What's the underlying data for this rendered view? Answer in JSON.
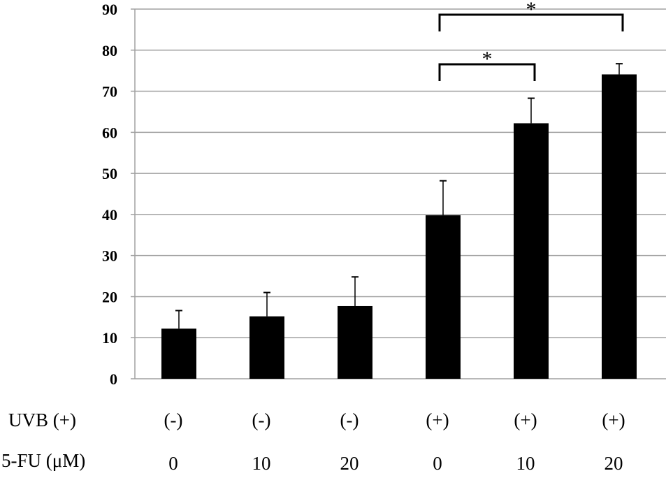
{
  "chart_data": {
    "type": "bar",
    "title": "",
    "xlabel": "",
    "ylabel": "",
    "ylim": [
      0,
      90
    ],
    "yticks": [
      0,
      10,
      20,
      30,
      40,
      50,
      60,
      70,
      80,
      90
    ],
    "grid": true,
    "bar_color": "#000000",
    "grid_color": "#a0a0a0",
    "row_labels": [
      "UVB (+)",
      "5-FU (μM)"
    ],
    "categories": [
      {
        "uvb": "(-)",
        "fu": "0"
      },
      {
        "uvb": "(-)",
        "fu": "10"
      },
      {
        "uvb": "(-)",
        "fu": "20"
      },
      {
        "uvb": "(+)",
        "fu": "0"
      },
      {
        "uvb": "(+)",
        "fu": "10"
      },
      {
        "uvb": "(+)",
        "fu": "20"
      }
    ],
    "values": [
      12.2,
      15.2,
      17.7,
      39.8,
      62.2,
      74.1
    ],
    "error_upper": [
      4.4,
      5.8,
      7.1,
      8.4,
      6.1,
      2.6
    ],
    "significance": [
      {
        "from": 3,
        "to": 4,
        "label": "*"
      },
      {
        "from": 3,
        "to": 5,
        "label": "*"
      }
    ]
  }
}
